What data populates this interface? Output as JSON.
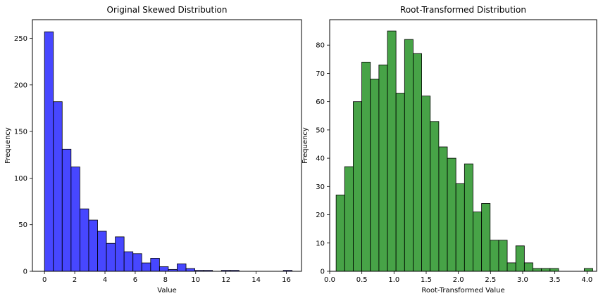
{
  "chart_data": [
    {
      "type": "bar",
      "title": "Original Skewed Distribution",
      "xlabel": "Value",
      "ylabel": "Frequency",
      "bar_color": "#0000ff",
      "edge_color": "#000000",
      "bin_start": 0.0,
      "bin_width": 0.585,
      "counts": [
        257,
        182,
        131,
        112,
        67,
        55,
        43,
        30,
        37,
        21,
        19,
        9,
        14,
        5,
        2,
        8,
        3,
        1,
        1,
        0,
        1,
        1,
        0,
        0,
        0,
        0,
        0,
        1
      ],
      "xlim": [
        -0.8,
        17.0
      ],
      "ylim": [
        0,
        270
      ],
      "xticks": [
        0,
        2,
        4,
        6,
        8,
        10,
        12,
        14,
        16
      ],
      "yticks": [
        0,
        50,
        100,
        150,
        200,
        250
      ],
      "grid": false
    },
    {
      "type": "bar",
      "title": "Root-Transformed Distribution",
      "xlabel": "Root-Transformed Value",
      "ylabel": "Frequency",
      "bar_color": "#008000",
      "edge_color": "#000000",
      "bin_start": 0.1,
      "bin_width": 0.133,
      "counts": [
        27,
        37,
        60,
        74,
        68,
        73,
        85,
        63,
        82,
        77,
        62,
        53,
        44,
        40,
        31,
        38,
        21,
        24,
        11,
        11,
        3,
        9,
        3,
        1,
        1,
        1,
        0,
        0,
        0,
        1
      ],
      "xlim": [
        -0.0,
        4.15
      ],
      "ylim": [
        0,
        89
      ],
      "xticks": [
        "0.0",
        "0.5",
        "1.0",
        "1.5",
        "2.0",
        "2.5",
        "3.0",
        "3.5",
        "4.0"
      ],
      "yticks": [
        0,
        10,
        20,
        30,
        40,
        50,
        60,
        70,
        80
      ],
      "grid": false
    }
  ]
}
